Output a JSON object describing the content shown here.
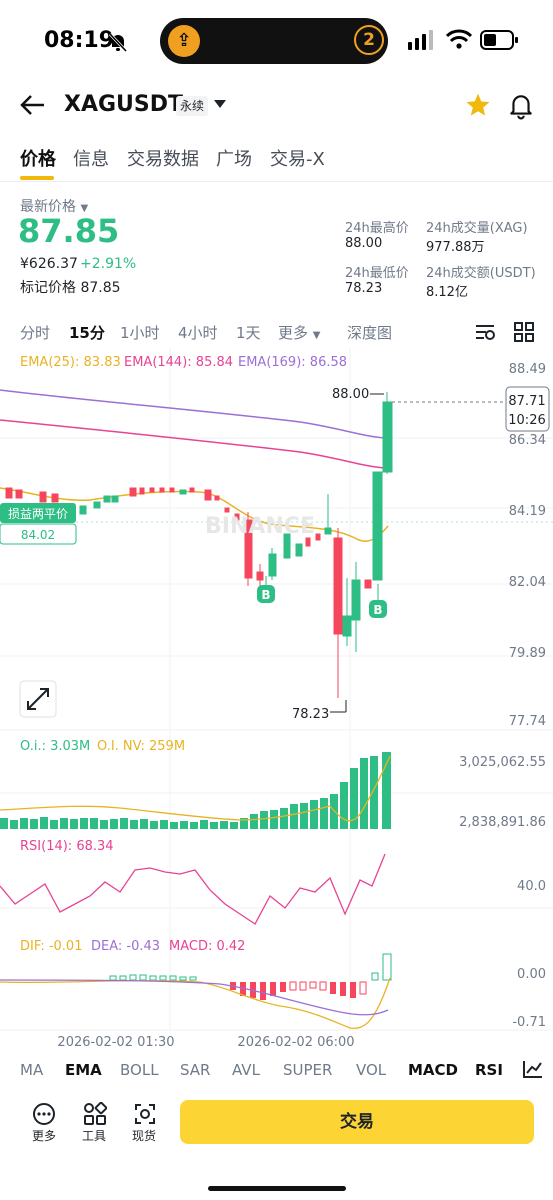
{
  "status_bar": {
    "time": "08:19",
    "notification_count": "2"
  },
  "header": {
    "symbol": "XAGUSDT",
    "contract_tag": "永续"
  },
  "tabs": [
    "价格",
    "信息",
    "交易数据",
    "广场",
    "交易-X"
  ],
  "price": {
    "last_price_label": "最新价格",
    "last_price": "87.85",
    "cny_price": "¥626.37",
    "change_pct": "+2.91%",
    "mark_price_label": "标记价格",
    "mark_price": "87.85"
  },
  "stats": {
    "high_label": "24h最高价",
    "high": "88.00",
    "low_label": "24h最低价",
    "low": "78.23",
    "vol_label": "24h成交量(XAG)",
    "vol": "977.88万",
    "turnover_label": "24h成交额(USDT)",
    "turnover": "8.12亿"
  },
  "intervals": [
    "分时",
    "15分",
    "1小时",
    "4小时",
    "1天",
    "更多",
    "深度图"
  ],
  "active_interval": "15分",
  "chart": {
    "ema_labels": [
      "EMA(25): 83.83",
      "EMA(144): 85.84",
      "EMA(169): 86.58"
    ],
    "price_axis": [
      "88.49",
      "86.34",
      "84.19",
      "82.04",
      "79.89",
      "77.74"
    ],
    "high_marker": "88.00",
    "low_marker": "78.23",
    "current_price_tag": "87.71",
    "countdown": "10:26",
    "breakeven_label": "损益两平价",
    "breakeven_value": "84.02",
    "buy_marker": "B",
    "watermark": "BINANCE",
    "oi_label": "O.i.: 3.03M",
    "oi_nv_label": "O.I. NV: 259M",
    "oi_axis": [
      "3,025,062.55",
      "2,838,891.86"
    ],
    "rsi_label": "RSI(14): 68.34",
    "rsi_axis": "40.0",
    "macd_labels": [
      "DIF: -0.01",
      "DEA: -0.43",
      "MACD: 0.42"
    ],
    "macd_axis": [
      "0.00",
      "-0.71"
    ],
    "time_axis": [
      "2026-02-02 01:30",
      "2026-02-02 06:00"
    ]
  },
  "indicators": [
    "MA",
    "EMA",
    "BOLL",
    "SAR",
    "AVL",
    "SUPER",
    "VOL",
    "MACD",
    "RSI"
  ],
  "bottom": {
    "more": "更多",
    "tools": "工具",
    "spot": "现货",
    "trade": "交易"
  },
  "colors": {
    "up": "#2ebd85",
    "down": "#f6465d",
    "accent": "#fcd535",
    "ema25": "#e8b322",
    "ema144": "#e84393",
    "ema169": "#9b6fd6"
  }
}
